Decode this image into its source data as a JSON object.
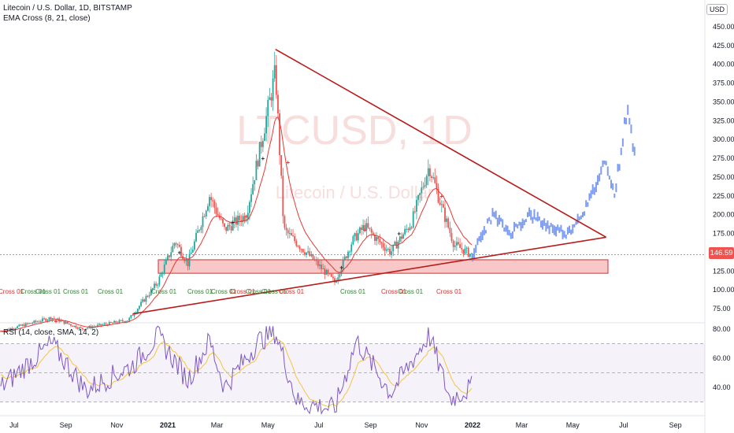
{
  "header": {
    "title": "Litecoin / U.S. Dollar, 1D, BITSTAMP",
    "indicator": "EMA Cross (8, 21, close)",
    "rsi_label": "RSI (14, close, SMA, 14, 2)",
    "currency_button": "USD",
    "watermark_main": "LTCUSD, 1D",
    "watermark_sub": "Litecoin / U.S. Dollar"
  },
  "price_axis": {
    "ticks": [
      "450.00",
      "425.00",
      "400.00",
      "375.00",
      "350.00",
      "325.00",
      "300.00",
      "275.00",
      "250.00",
      "225.00",
      "200.00",
      "175.00",
      "150.00",
      "125.00",
      "100.00",
      "75.00"
    ],
    "last_price": "146.59"
  },
  "rsi_axis": {
    "ticks": [
      "80.00",
      "60.00",
      "40.00"
    ]
  },
  "time_axis": {
    "ticks": [
      "Jul",
      "Sep",
      "Nov",
      "2021",
      "Mar",
      "May",
      "Jul",
      "Sep",
      "Nov",
      "2022",
      "Mar",
      "May",
      "Jul",
      "Sep"
    ]
  },
  "cross_labels": [
    "Cross 01",
    "Cross 01",
    "Cross 01",
    "Cross 01",
    "Cross 01",
    "Cross 01",
    "Cross 01",
    "Cross 01",
    "Cross 01",
    "Cross 01",
    "Cross 01",
    "Cross 01",
    "Cross 01",
    "Cross 01",
    "Cross 01",
    "Cross 01"
  ],
  "colors": {
    "up": "#26a69a",
    "down": "#ef5350",
    "ema": "#e53935",
    "trendline": "#b71c1c",
    "projection": "#7e9cf0",
    "rsi": "#7e57c2",
    "rsi_ma": "#f4c542",
    "zone": "#f8bcbc"
  },
  "chart_data": {
    "type": "candlestick",
    "title": "Litecoin / U.S. Dollar, 1D, BITSTAMP",
    "yrange": [
      65,
      455
    ],
    "rsi_range": [
      20,
      85
    ],
    "support_zone": [
      122,
      140
    ],
    "trendline_upper": [
      [
        "2021-05-10",
        420
      ],
      [
        "2022-06-10",
        170
      ]
    ],
    "trendline_lower": [
      [
        "2020-11-20",
        68
      ],
      [
        "2022-06-10",
        170
      ]
    ],
    "price_path": [
      [
        "2020-06-15",
        45
      ],
      [
        "2020-08-15",
        63
      ],
      [
        "2020-09-20",
        48
      ],
      [
        "2020-11-15",
        60
      ],
      [
        "2020-12-20",
        110
      ],
      [
        "2021-01-10",
        165
      ],
      [
        "2021-01-25",
        135
      ],
      [
        "2021-02-20",
        225
      ],
      [
        "2021-03-10",
        180
      ],
      [
        "2021-04-05",
        200
      ],
      [
        "2021-04-20",
        280
      ],
      [
        "2021-05-10",
        390
      ],
      [
        "2021-05-20",
        180
      ],
      [
        "2021-06-20",
        145
      ],
      [
        "2021-07-20",
        110
      ],
      [
        "2021-08-10",
        165
      ],
      [
        "2021-08-25",
        185
      ],
      [
        "2021-09-10",
        165
      ],
      [
        "2021-09-25",
        150
      ],
      [
        "2021-10-20",
        190
      ],
      [
        "2021-11-10",
        265
      ],
      [
        "2021-11-25",
        210
      ],
      [
        "2021-12-10",
        160
      ],
      [
        "2021-12-31",
        146.59
      ]
    ],
    "projection_path": [
      [
        "2022-01-01",
        147
      ],
      [
        "2022-01-25",
        200
      ],
      [
        "2022-02-15",
        175
      ],
      [
        "2022-03-10",
        200
      ],
      [
        "2022-04-01",
        185
      ],
      [
        "2022-04-25",
        175
      ],
      [
        "2022-05-20",
        215
      ],
      [
        "2022-06-10",
        275
      ],
      [
        "2022-06-20",
        225
      ],
      [
        "2022-07-05",
        340
      ],
      [
        "2022-07-15",
        280
      ]
    ],
    "rsi_path": [
      [
        "2020-06-15",
        40
      ],
      [
        "2020-08-15",
        70
      ],
      [
        "2020-09-25",
        38
      ],
      [
        "2020-11-20",
        55
      ],
      [
        "2020-12-20",
        75
      ],
      [
        "2021-01-25",
        45
      ],
      [
        "2021-02-20",
        72
      ],
      [
        "2021-03-10",
        40
      ],
      [
        "2021-04-20",
        72
      ],
      [
        "2021-05-10",
        78
      ],
      [
        "2021-06-05",
        30
      ],
      [
        "2021-07-20",
        25
      ],
      [
        "2021-08-15",
        72
      ],
      [
        "2021-09-25",
        36
      ],
      [
        "2021-11-10",
        76
      ],
      [
        "2021-12-05",
        32
      ],
      [
        "2021-12-31",
        40
      ]
    ]
  }
}
